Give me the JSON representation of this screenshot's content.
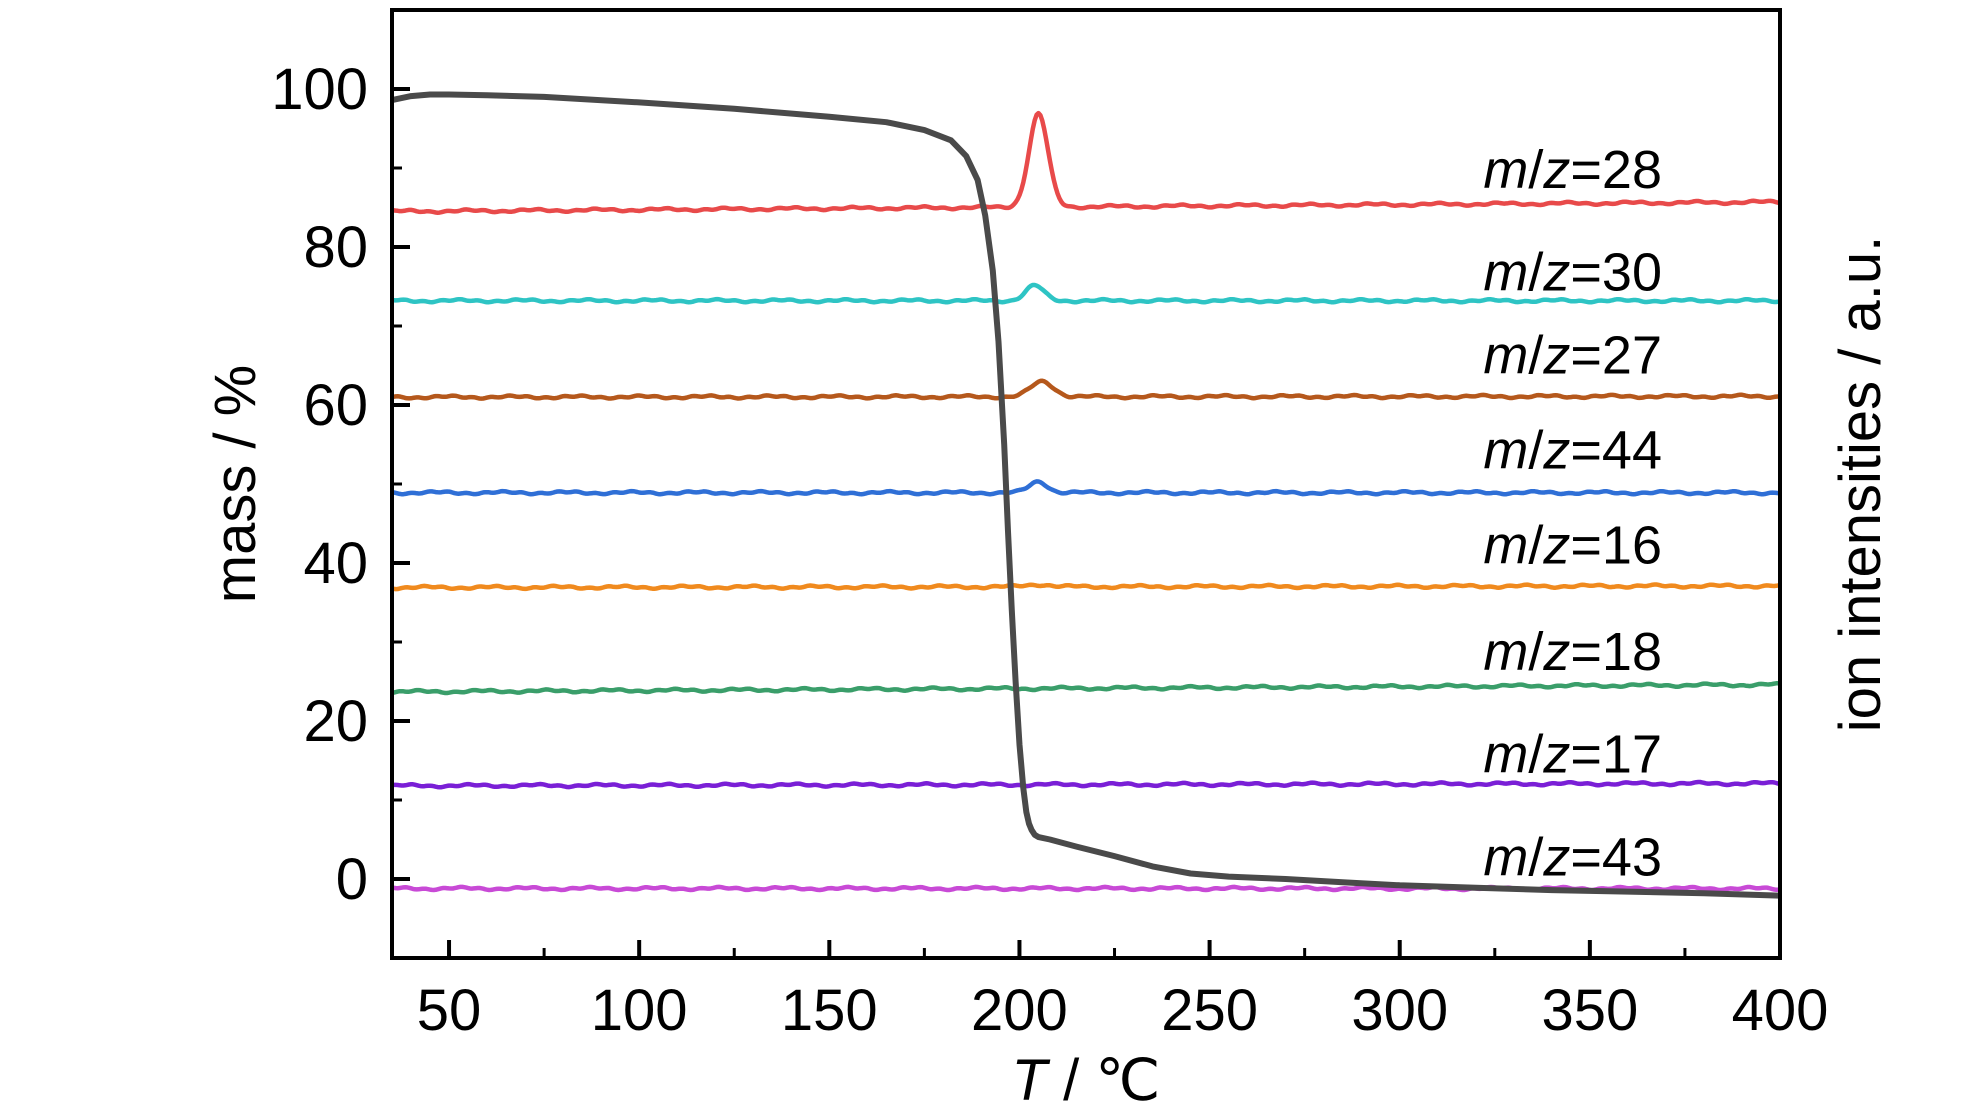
{
  "chart_data": {
    "type": "line",
    "xlabel_italic": "T",
    "xlabel_rest": " / ℃",
    "ylabel": "mass / %",
    "ylabel_right": "ion intensities / a.u.",
    "xlim": [
      35,
      400
    ],
    "ylim": [
      -10,
      110
    ],
    "xticks": [
      50,
      100,
      150,
      200,
      250,
      300,
      350,
      400
    ],
    "yticks": [
      0,
      20,
      40,
      60,
      80,
      100
    ],
    "grid": false,
    "mass_series": {
      "name": "",
      "color": "#4a4a4a",
      "x": [
        35,
        40,
        45,
        50,
        60,
        75,
        100,
        125,
        150,
        165,
        175,
        182,
        186,
        189,
        191,
        193,
        194.5,
        196,
        197,
        198,
        199,
        200,
        201,
        201.8,
        202.5,
        203.2,
        204,
        205,
        208,
        215,
        225,
        235,
        245,
        255,
        270,
        285,
        300,
        320,
        340,
        360,
        380,
        400
      ],
      "y": [
        98.6,
        99.1,
        99.3,
        99.3,
        99.2,
        99.0,
        98.3,
        97.5,
        96.5,
        95.8,
        94.8,
        93.5,
        91.5,
        88.5,
        84.0,
        77.0,
        68.0,
        55.0,
        44.0,
        34.0,
        25.0,
        17.0,
        11.5,
        8.5,
        7.0,
        6.2,
        5.6,
        5.3,
        5.0,
        4.1,
        2.9,
        1.6,
        0.7,
        0.3,
        0.0,
        -0.4,
        -0.8,
        -1.1,
        -1.4,
        -1.6,
        -1.8,
        -2.1
      ]
    },
    "ion_series": [
      {
        "label_m": "m",
        "label_z": "z",
        "label_rest": "=28",
        "color": "#e84a4a",
        "base": 84.5,
        "end": 85.7,
        "peak_x": 205,
        "peak_h": 11.8,
        "peak_w": 2.5,
        "label_y": 90
      },
      {
        "label_m": "m",
        "label_z": "z",
        "label_rest": "=30",
        "color": "#2ec4c4",
        "base": 73.2,
        "end": 73.2,
        "peak_x": 204,
        "peak_h": 1.9,
        "peak_w": 2.4,
        "label_y": 77
      },
      {
        "label_m": "m",
        "label_z": "z",
        "label_rest": "=27",
        "color": "#b5581c",
        "base": 61.0,
        "end": 61.1,
        "peak_x": 206,
        "peak_h": 1.9,
        "peak_w": 3.0,
        "label_y": 66.5
      },
      {
        "label_m": "m",
        "label_z": "z",
        "label_rest": "=44",
        "color": "#2f6fd6",
        "base": 48.9,
        "end": 48.9,
        "peak_x": 205,
        "peak_h": 1.4,
        "peak_w": 2.4,
        "label_y": 54.5
      },
      {
        "label_m": "m",
        "label_z": "z",
        "label_rest": "=16",
        "color": "#f08a1e",
        "base": 36.9,
        "end": 37.1,
        "peak_x": 205,
        "peak_h": 0.3,
        "peak_w": 3.0,
        "label_y": 42.5
      },
      {
        "label_m": "m",
        "label_z": "z",
        "label_rest": "=18",
        "color": "#3a9e6a",
        "base": 23.7,
        "end": 24.6,
        "peak_x": 205,
        "peak_h": 0.0,
        "peak_w": 3.0,
        "label_y": 29
      },
      {
        "label_m": "m",
        "label_z": "z",
        "label_rest": "=17",
        "color": "#7a1fd6",
        "base": 11.8,
        "end": 12.1,
        "peak_x": 205,
        "peak_h": 0.0,
        "peak_w": 3.0,
        "label_y": 16
      },
      {
        "label_m": "m",
        "label_z": "z",
        "label_rest": "=43",
        "color": "#c84ad6",
        "base": -1.2,
        "end": -1.2,
        "peak_x": 205,
        "peak_h": 0.0,
        "peak_w": 3.0,
        "label_y": 3
      }
    ]
  }
}
